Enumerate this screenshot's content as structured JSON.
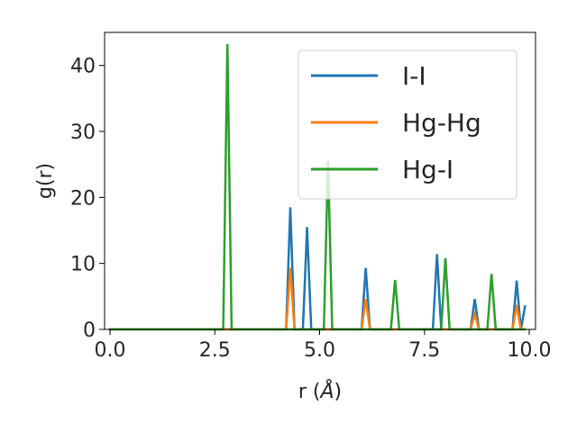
{
  "chart_data": {
    "type": "line",
    "xlabel_prefix": "r (",
    "xlabel_unit": "Å",
    "xlabel_suffix": ")",
    "ylabel": "g(r)",
    "xlim": [
      -0.13,
      10.15
    ],
    "ylim": [
      0,
      45
    ],
    "xticks": [
      0.0,
      2.5,
      5.0,
      7.5,
      10.0
    ],
    "xtick_labels": [
      "0.0",
      "2.5",
      "5.0",
      "7.5",
      "10.0"
    ],
    "yticks": [
      0,
      10,
      20,
      30,
      40
    ],
    "ytick_labels": [
      "0",
      "10",
      "20",
      "30",
      "40"
    ],
    "grid": false,
    "legend_position": "top-right",
    "series": [
      {
        "name": "I-I",
        "color": "#1f77b4",
        "x": [
          0.0,
          4.2,
          4.3,
          4.4,
          4.6,
          4.7,
          4.8,
          6.0,
          6.1,
          6.2,
          7.7,
          7.8,
          7.9,
          8.6,
          8.7,
          8.8,
          9.6,
          9.7,
          9.8,
          9.9
        ],
        "y": [
          0,
          0,
          18.5,
          0,
          0,
          15.5,
          0,
          0,
          9.3,
          0,
          0,
          11.4,
          0,
          0,
          4.6,
          0,
          0,
          7.4,
          0,
          3.5
        ]
      },
      {
        "name": "Hg-Hg",
        "color": "#ff7f0e",
        "x": [
          0.0,
          4.2,
          4.3,
          4.4,
          6.0,
          6.1,
          6.2,
          8.6,
          8.7,
          8.8,
          9.6,
          9.7,
          9.8
        ],
        "y": [
          0,
          0,
          9.3,
          0,
          0,
          4.6,
          0,
          0,
          2.3,
          0,
          0,
          3.7,
          0
        ]
      },
      {
        "name": "Hg-I",
        "color": "#2ca02c",
        "x": [
          0.0,
          2.7,
          2.8,
          2.9,
          5.1,
          5.2,
          5.3,
          6.7,
          6.8,
          6.9,
          7.9,
          8.0,
          8.1,
          9.0,
          9.1,
          9.2,
          9.9
        ],
        "y": [
          0,
          0,
          43.2,
          0,
          0,
          25.5,
          0,
          0,
          7.5,
          0,
          0,
          10.8,
          0,
          0,
          8.4,
          0,
          0
        ]
      }
    ]
  }
}
